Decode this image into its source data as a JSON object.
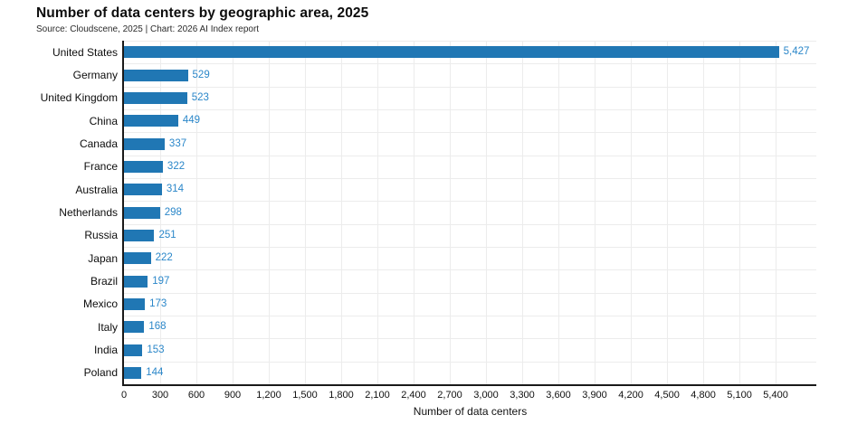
{
  "header": {
    "title": "Number of data centers by geographic area, 2025",
    "subtitle": "Source: Cloudscene, 2025 | Chart: 2026 AI Index report"
  },
  "chart_data": {
    "type": "bar",
    "orientation": "horizontal",
    "title": "Number of data centers by geographic area, 2025",
    "source_note": "Source: Cloudscene, 2025 | Chart: 2026 AI Index report",
    "categories": [
      "United States",
      "Germany",
      "United Kingdom",
      "China",
      "Canada",
      "France",
      "Australia",
      "Netherlands",
      "Russia",
      "Japan",
      "Brazil",
      "Mexico",
      "Italy",
      "India",
      "Poland"
    ],
    "values": [
      5427,
      529,
      523,
      449,
      337,
      322,
      314,
      298,
      251,
      222,
      197,
      173,
      168,
      153,
      144
    ],
    "value_labels": [
      "5,427",
      "529",
      "523",
      "449",
      "337",
      "322",
      "314",
      "298",
      "251",
      "222",
      "197",
      "173",
      "168",
      "153",
      "144"
    ],
    "xlabel": "Number of data centers",
    "ylabel": "",
    "xlim": [
      0,
      5737
    ],
    "xticks": [
      0,
      300,
      600,
      900,
      1200,
      1500,
      1800,
      2100,
      2400,
      2700,
      3000,
      3300,
      3600,
      3900,
      4200,
      4500,
      4800,
      5100,
      5400
    ],
    "xtick_labels": [
      "0",
      "300",
      "600",
      "900",
      "1,200",
      "1,500",
      "1,800",
      "2,100",
      "2,400",
      "2,700",
      "3,000",
      "3,300",
      "3,600",
      "3,900",
      "4,200",
      "4,500",
      "4,800",
      "5,100",
      "5,400"
    ],
    "grid": true,
    "legend": "none",
    "bar_color": "#2077b4",
    "value_label_color": "#2b87c9",
    "grid_color": "#ececec",
    "axis_color": "#1a1a1a"
  }
}
